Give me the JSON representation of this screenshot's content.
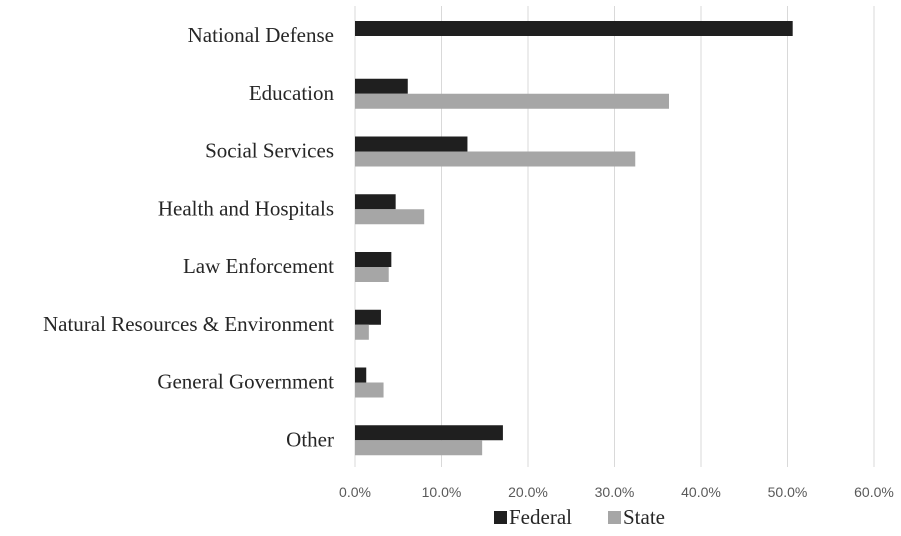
{
  "chart_data": {
    "type": "bar",
    "orientation": "horizontal",
    "title": "",
    "xlabel": "",
    "ylabel": "",
    "categories": [
      "National Defense",
      "Education",
      "Social Services",
      "Health and Hospitals",
      "Law Enforcement",
      "Natural Resources & Environment",
      "General Government",
      "Other"
    ],
    "series": [
      {
        "name": "Federal",
        "color": "#1f1f1f",
        "values": [
          50.6,
          6.1,
          13.0,
          4.7,
          4.2,
          3.0,
          1.3,
          17.1
        ]
      },
      {
        "name": "State",
        "color": "#a6a6a6",
        "values": [
          null,
          36.3,
          32.4,
          8.0,
          3.9,
          1.6,
          3.3,
          14.7
        ]
      }
    ],
    "xlim": [
      0,
      60
    ],
    "xticks": [
      "0.0%",
      "10.0%",
      "20.0%",
      "30.0%",
      "40.0%",
      "50.0%",
      "60.0%"
    ],
    "grid": true,
    "legend_position": "bottom"
  }
}
